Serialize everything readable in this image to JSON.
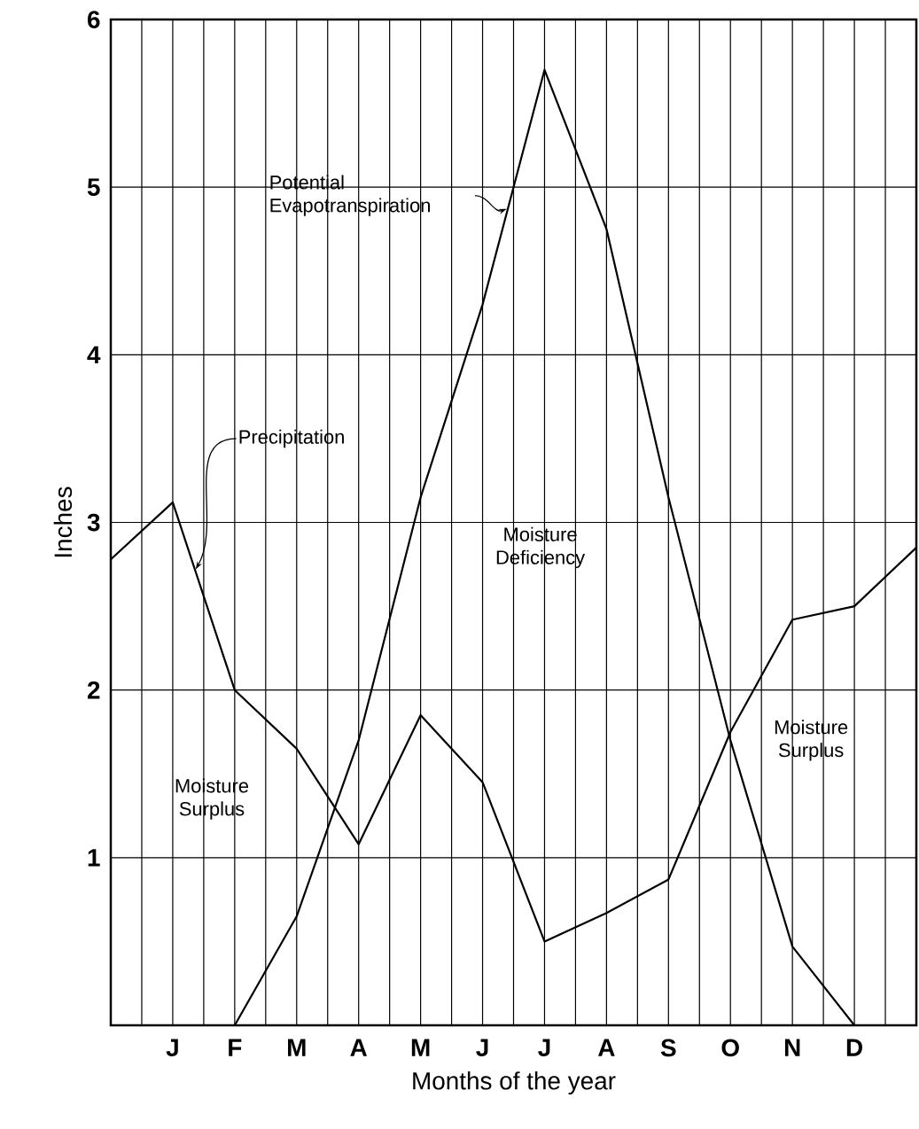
{
  "chart_data": {
    "type": "line",
    "xlabel": "Months of the year",
    "ylabel": "Inches",
    "categories": [
      null,
      "J",
      "F",
      "M",
      "A",
      "M",
      "J",
      "J",
      "A",
      "S",
      "O",
      "N",
      "D",
      null
    ],
    "ylim": [
      0,
      6
    ],
    "yticks": [
      1,
      2,
      3,
      4,
      5,
      6
    ],
    "grid": true,
    "series": [
      {
        "name": "Precipitation",
        "color": "#000000",
        "values": [
          2.78,
          3.12,
          2.0,
          1.65,
          1.08,
          1.85,
          1.45,
          0.5,
          0.67,
          0.87,
          1.75,
          2.42,
          2.5,
          2.85
        ]
      },
      {
        "name": "Potential Evapotranspiration",
        "color": "#000000",
        "values": [
          null,
          null,
          0,
          0.65,
          1.7,
          3.15,
          4.3,
          5.7,
          4.75,
          3.15,
          1.7,
          0.47,
          0,
          null
        ]
      }
    ],
    "annotations": [
      "Moisture Deficiency",
      "Moisture Surplus",
      "Moisture Surplus"
    ]
  }
}
